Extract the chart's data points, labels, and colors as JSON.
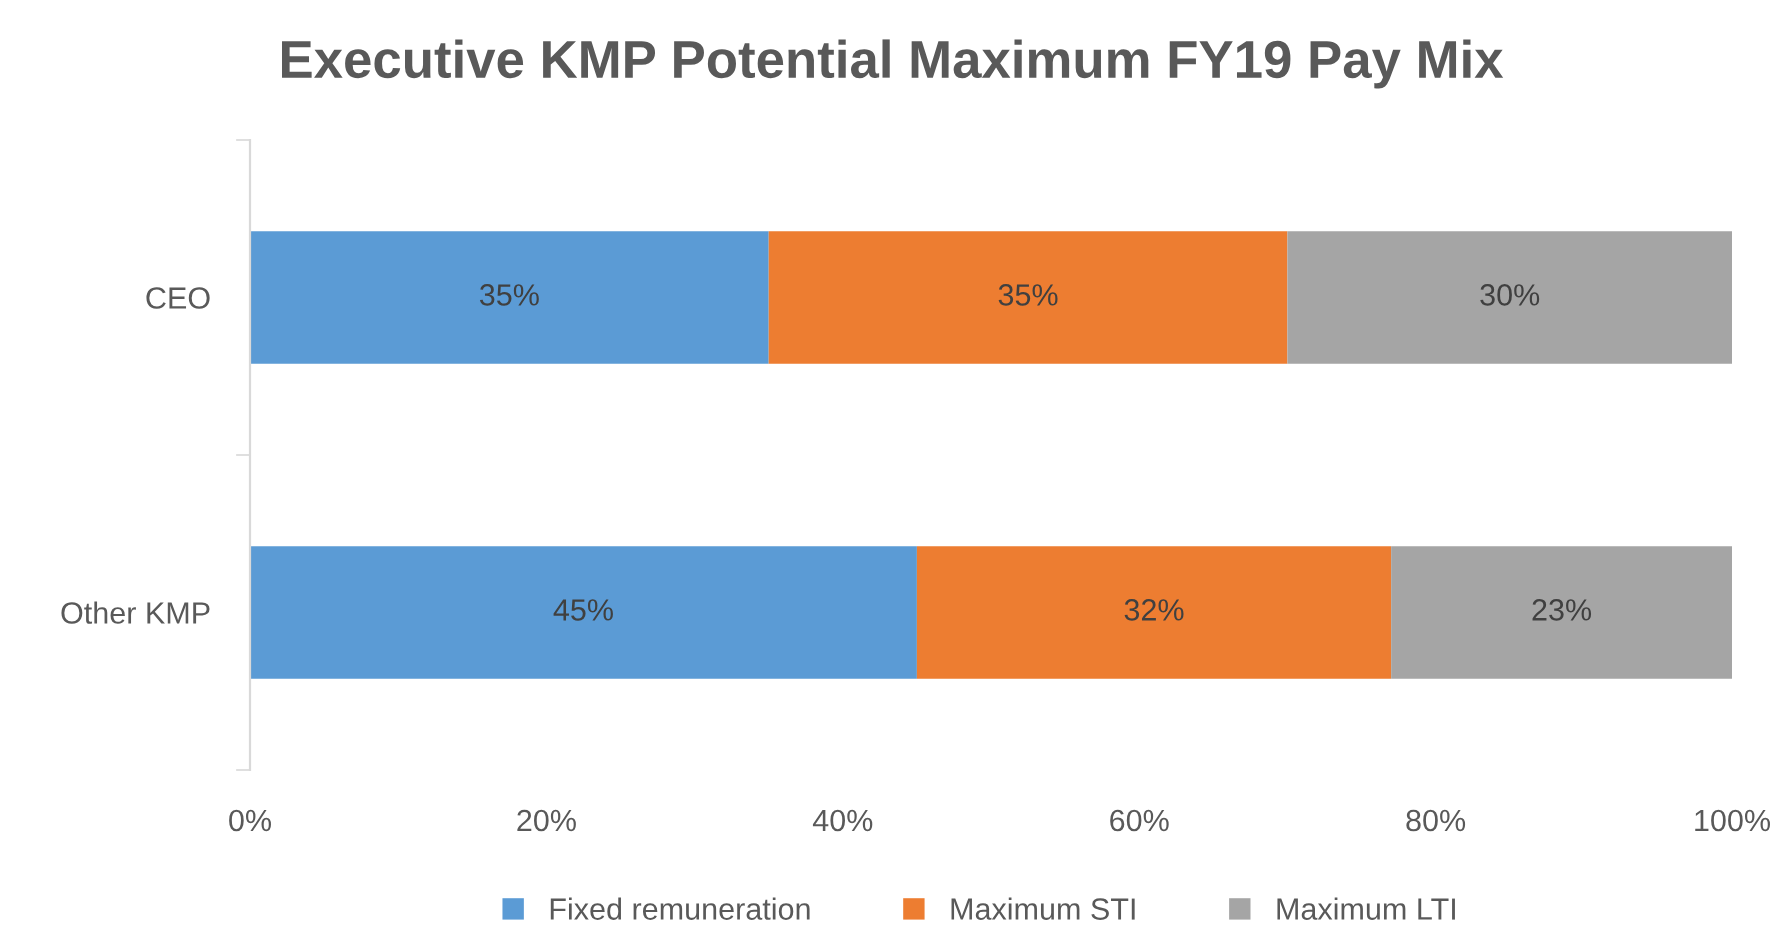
{
  "chart_data": {
    "type": "bar",
    "orientation": "horizontal",
    "stacked": true,
    "title": "Executive KMP Potential Maximum FY19 Pay Mix",
    "categories": [
      "CEO",
      "Other KMP"
    ],
    "series": [
      {
        "name": "Fixed remuneration",
        "color": "#5b9bd5",
        "values": [
          35,
          45
        ],
        "value_labels": [
          "35%",
          "45%"
        ]
      },
      {
        "name": "Maximum STI",
        "color": "#ed7d31",
        "values": [
          35,
          32
        ],
        "value_labels": [
          "35%",
          "32%"
        ]
      },
      {
        "name": "Maximum LTI",
        "color": "#a5a5a5",
        "values": [
          30,
          23
        ],
        "value_labels": [
          "30%",
          "23%"
        ]
      }
    ],
    "xlim": [
      0,
      100
    ],
    "xticks": [
      {
        "value": 0,
        "label": "0%"
      },
      {
        "value": 20,
        "label": "20%"
      },
      {
        "value": 40,
        "label": "40%"
      },
      {
        "value": 60,
        "label": "60%"
      },
      {
        "value": 80,
        "label": "80%"
      },
      {
        "value": 100,
        "label": "100%"
      }
    ],
    "legend": "bottom"
  }
}
